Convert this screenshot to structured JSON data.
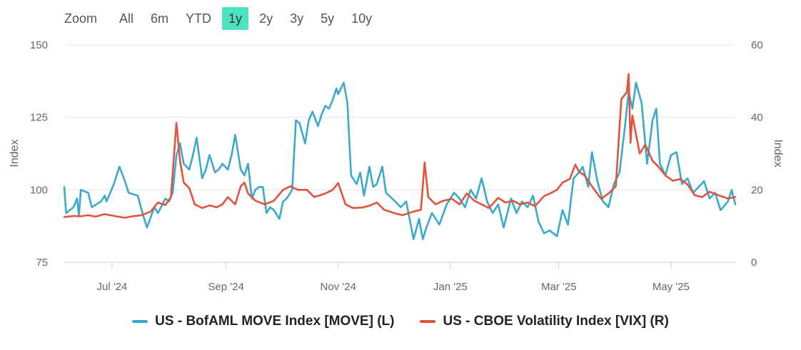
{
  "zoom": {
    "label": "Zoom",
    "buttons": [
      "All",
      "6m",
      "YTD",
      "1y",
      "2y",
      "3y",
      "5y",
      "10y"
    ],
    "active": "1y",
    "active_color": "#4de2c0"
  },
  "chart_data": {
    "type": "line",
    "grid": true,
    "legend_position": "bottom-center",
    "title": "",
    "left_axis": {
      "label": "Index",
      "ticks": [
        75,
        100,
        125,
        150
      ],
      "range": [
        75,
        150
      ]
    },
    "right_axis": {
      "label": "Index",
      "ticks": [
        0,
        20,
        40,
        60
      ],
      "range": [
        0,
        60
      ]
    },
    "x_axis": {
      "range": [
        "2024-06-05",
        "2025-06-05"
      ],
      "ticks": [
        {
          "date": "2024-07-01",
          "label": "Jul '24"
        },
        {
          "date": "2024-09-01",
          "label": "Sep '24"
        },
        {
          "date": "2024-11-01",
          "label": "Nov '24"
        },
        {
          "date": "2025-01-01",
          "label": "Jan '25"
        },
        {
          "date": "2025-03-01",
          "label": "Mar '25"
        },
        {
          "date": "2025-05-01",
          "label": "May '25"
        }
      ]
    },
    "series": [
      {
        "name": "US - BofAML MOVE Index [MOVE] (L)",
        "axis": "left",
        "color": "#3ba9cf",
        "points": [
          [
            "2024-06-05",
            101
          ],
          [
            "2024-06-06",
            92
          ],
          [
            "2024-06-10",
            94
          ],
          [
            "2024-06-12",
            97
          ],
          [
            "2024-06-13",
            91
          ],
          [
            "2024-06-14",
            100
          ],
          [
            "2024-06-18",
            99
          ],
          [
            "2024-06-20",
            94
          ],
          [
            "2024-06-25",
            96
          ],
          [
            "2024-06-27",
            98
          ],
          [
            "2024-06-28",
            96
          ],
          [
            "2024-07-02",
            102
          ],
          [
            "2024-07-05",
            108
          ],
          [
            "2024-07-08",
            103
          ],
          [
            "2024-07-10",
            99
          ],
          [
            "2024-07-15",
            98
          ],
          [
            "2024-07-18",
            91
          ],
          [
            "2024-07-20",
            87
          ],
          [
            "2024-07-24",
            94
          ],
          [
            "2024-07-26",
            92
          ],
          [
            "2024-07-30",
            97
          ],
          [
            "2024-08-01",
            96
          ],
          [
            "2024-08-03",
            99
          ],
          [
            "2024-08-05",
            112
          ],
          [
            "2024-08-07",
            116
          ],
          [
            "2024-08-09",
            109
          ],
          [
            "2024-08-12",
            107
          ],
          [
            "2024-08-14",
            112
          ],
          [
            "2024-08-16",
            118
          ],
          [
            "2024-08-19",
            104
          ],
          [
            "2024-08-21",
            107
          ],
          [
            "2024-08-23",
            112
          ],
          [
            "2024-08-26",
            106
          ],
          [
            "2024-08-28",
            107
          ],
          [
            "2024-08-30",
            109
          ],
          [
            "2024-09-02",
            107
          ],
          [
            "2024-09-04",
            112
          ],
          [
            "2024-09-06",
            119
          ],
          [
            "2024-09-09",
            107
          ],
          [
            "2024-09-11",
            105
          ],
          [
            "2024-09-13",
            109
          ],
          [
            "2024-09-15",
            97
          ],
          [
            "2024-09-17",
            100
          ],
          [
            "2024-09-19",
            101
          ],
          [
            "2024-09-21",
            101
          ],
          [
            "2024-09-23",
            92
          ],
          [
            "2024-09-25",
            94
          ],
          [
            "2024-09-27",
            93
          ],
          [
            "2024-09-30",
            90
          ],
          [
            "2024-10-02",
            96
          ],
          [
            "2024-10-04",
            97
          ],
          [
            "2024-10-07",
            100
          ],
          [
            "2024-10-09",
            124
          ],
          [
            "2024-10-11",
            123
          ],
          [
            "2024-10-14",
            116
          ],
          [
            "2024-10-16",
            124
          ],
          [
            "2024-10-18",
            127
          ],
          [
            "2024-10-21",
            122
          ],
          [
            "2024-10-23",
            126
          ],
          [
            "2024-10-25",
            129
          ],
          [
            "2024-10-27",
            128
          ],
          [
            "2024-10-29",
            131
          ],
          [
            "2024-10-31",
            135
          ],
          [
            "2024-11-01",
            133
          ],
          [
            "2024-11-04",
            137
          ],
          [
            "2024-11-06",
            130
          ],
          [
            "2024-11-08",
            105
          ],
          [
            "2024-11-11",
            102
          ],
          [
            "2024-11-13",
            106
          ],
          [
            "2024-11-15",
            98
          ],
          [
            "2024-11-18",
            108
          ],
          [
            "2024-11-20",
            101
          ],
          [
            "2024-11-22",
            102
          ],
          [
            "2024-11-25",
            108
          ],
          [
            "2024-11-27",
            99
          ],
          [
            "2024-12-02",
            96
          ],
          [
            "2024-12-05",
            94
          ],
          [
            "2024-12-08",
            96
          ],
          [
            "2024-12-12",
            83
          ],
          [
            "2024-12-15",
            90
          ],
          [
            "2024-12-17",
            83
          ],
          [
            "2024-12-19",
            87
          ],
          [
            "2024-12-22",
            92
          ],
          [
            "2024-12-26",
            88
          ],
          [
            "2024-12-30",
            95
          ],
          [
            "2025-01-03",
            99
          ],
          [
            "2025-01-06",
            97
          ],
          [
            "2025-01-09",
            94
          ],
          [
            "2025-01-12",
            100
          ],
          [
            "2025-01-15",
            97
          ],
          [
            "2025-01-18",
            104
          ],
          [
            "2025-01-21",
            96
          ],
          [
            "2025-01-24",
            92
          ],
          [
            "2025-01-27",
            95
          ],
          [
            "2025-01-30",
            87
          ],
          [
            "2025-02-03",
            97
          ],
          [
            "2025-02-06",
            92
          ],
          [
            "2025-02-09",
            96
          ],
          [
            "2025-02-12",
            94
          ],
          [
            "2025-02-15",
            98
          ],
          [
            "2025-02-18",
            89
          ],
          [
            "2025-02-21",
            85
          ],
          [
            "2025-02-24",
            86
          ],
          [
            "2025-02-28",
            84
          ],
          [
            "2025-03-03",
            93
          ],
          [
            "2025-03-06",
            88
          ],
          [
            "2025-03-09",
            104
          ],
          [
            "2025-03-12",
            106
          ],
          [
            "2025-03-14",
            108
          ],
          [
            "2025-03-17",
            101
          ],
          [
            "2025-03-19",
            113
          ],
          [
            "2025-03-22",
            103
          ],
          [
            "2025-03-25",
            96
          ],
          [
            "2025-03-28",
            94
          ],
          [
            "2025-03-31",
            102
          ],
          [
            "2025-04-03",
            106
          ],
          [
            "2025-04-06",
            122
          ],
          [
            "2025-04-08",
            134
          ],
          [
            "2025-04-10",
            128
          ],
          [
            "2025-04-12",
            137
          ],
          [
            "2025-04-15",
            130
          ],
          [
            "2025-04-18",
            109
          ],
          [
            "2025-04-21",
            124
          ],
          [
            "2025-04-23",
            128
          ],
          [
            "2025-04-25",
            109
          ],
          [
            "2025-04-28",
            105
          ],
          [
            "2025-05-01",
            112
          ],
          [
            "2025-05-04",
            113
          ],
          [
            "2025-05-07",
            102
          ],
          [
            "2025-05-10",
            104
          ],
          [
            "2025-05-13",
            99
          ],
          [
            "2025-05-16",
            101
          ],
          [
            "2025-05-19",
            103
          ],
          [
            "2025-05-22",
            97
          ],
          [
            "2025-05-25",
            99
          ],
          [
            "2025-05-28",
            93
          ],
          [
            "2025-06-01",
            96
          ],
          [
            "2025-06-03",
            100
          ],
          [
            "2025-06-05",
            95
          ]
        ]
      },
      {
        "name": "US - CBOE Volatility Index [VIX] (R)",
        "axis": "right",
        "color": "#e0533d",
        "points": [
          [
            "2024-06-05",
            12.5
          ],
          [
            "2024-06-10",
            12.8
          ],
          [
            "2024-06-14",
            12.7
          ],
          [
            "2024-06-18",
            13
          ],
          [
            "2024-06-22",
            12.6
          ],
          [
            "2024-06-27",
            13.3
          ],
          [
            "2024-07-02",
            12.8
          ],
          [
            "2024-07-08",
            12.3
          ],
          [
            "2024-07-12",
            12.7
          ],
          [
            "2024-07-17",
            13
          ],
          [
            "2024-07-22",
            14
          ],
          [
            "2024-07-26",
            16.5
          ],
          [
            "2024-07-30",
            15.8
          ],
          [
            "2024-08-02",
            18
          ],
          [
            "2024-08-05",
            38.5
          ],
          [
            "2024-08-07",
            28
          ],
          [
            "2024-08-09",
            22
          ],
          [
            "2024-08-12",
            20.5
          ],
          [
            "2024-08-15",
            16
          ],
          [
            "2024-08-19",
            15
          ],
          [
            "2024-08-23",
            15.7
          ],
          [
            "2024-08-27",
            15.2
          ],
          [
            "2024-08-30",
            16
          ],
          [
            "2024-09-02",
            18
          ],
          [
            "2024-09-04",
            17
          ],
          [
            "2024-09-06",
            16
          ],
          [
            "2024-09-09",
            21
          ],
          [
            "2024-09-11",
            22
          ],
          [
            "2024-09-13",
            19
          ],
          [
            "2024-09-17",
            17
          ],
          [
            "2024-09-22",
            16
          ],
          [
            "2024-09-27",
            17
          ],
          [
            "2024-10-02",
            20
          ],
          [
            "2024-10-06",
            21
          ],
          [
            "2024-10-10",
            20
          ],
          [
            "2024-10-15",
            20
          ],
          [
            "2024-10-19",
            18
          ],
          [
            "2024-10-25",
            19
          ],
          [
            "2024-10-29",
            20
          ],
          [
            "2024-11-01",
            21.9
          ],
          [
            "2024-11-05",
            16
          ],
          [
            "2024-11-09",
            15
          ],
          [
            "2024-11-14",
            15.1
          ],
          [
            "2024-11-18",
            15.6
          ],
          [
            "2024-11-22",
            16.5
          ],
          [
            "2024-11-26",
            14.5
          ],
          [
            "2024-12-02",
            13.5
          ],
          [
            "2024-12-06",
            13
          ],
          [
            "2024-12-12",
            14
          ],
          [
            "2024-12-16",
            14.5
          ],
          [
            "2024-12-18",
            27.6
          ],
          [
            "2024-12-20",
            18
          ],
          [
            "2024-12-24",
            16
          ],
          [
            "2024-12-28",
            17
          ],
          [
            "2025-01-02",
            17.5
          ],
          [
            "2025-01-06",
            16
          ],
          [
            "2025-01-10",
            19
          ],
          [
            "2025-01-14",
            17
          ],
          [
            "2025-01-18",
            16
          ],
          [
            "2025-01-22",
            15
          ],
          [
            "2025-01-27",
            17.8
          ],
          [
            "2025-01-31",
            16.5
          ],
          [
            "2025-02-04",
            17
          ],
          [
            "2025-02-08",
            16
          ],
          [
            "2025-02-12",
            16.5
          ],
          [
            "2025-02-16",
            15.5
          ],
          [
            "2025-02-21",
            18.3
          ],
          [
            "2025-02-25",
            19.2
          ],
          [
            "2025-02-28",
            20
          ],
          [
            "2025-03-03",
            22
          ],
          [
            "2025-03-07",
            23
          ],
          [
            "2025-03-10",
            27
          ],
          [
            "2025-03-12",
            25
          ],
          [
            "2025-03-15",
            24
          ],
          [
            "2025-03-19",
            21
          ],
          [
            "2025-03-24",
            17.5
          ],
          [
            "2025-03-28",
            19
          ],
          [
            "2025-04-01",
            21
          ],
          [
            "2025-04-04",
            45
          ],
          [
            "2025-04-07",
            47
          ],
          [
            "2025-04-08",
            52
          ],
          [
            "2025-04-09",
            33
          ],
          [
            "2025-04-10",
            40.5
          ],
          [
            "2025-04-14",
            30
          ],
          [
            "2025-04-17",
            32.5
          ],
          [
            "2025-04-21",
            28
          ],
          [
            "2025-04-24",
            26.5
          ],
          [
            "2025-04-28",
            24
          ],
          [
            "2025-05-02",
            22.5
          ],
          [
            "2025-05-06",
            23
          ],
          [
            "2025-05-10",
            21.5
          ],
          [
            "2025-05-14",
            18.5
          ],
          [
            "2025-05-18",
            18
          ],
          [
            "2025-05-22",
            19.5
          ],
          [
            "2025-05-27",
            18.5
          ],
          [
            "2025-06-01",
            17.6
          ],
          [
            "2025-06-05",
            18
          ]
        ]
      }
    ]
  }
}
